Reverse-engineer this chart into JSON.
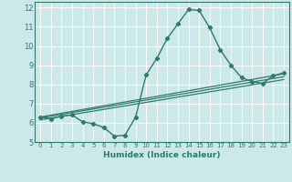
{
  "title": "",
  "xlabel": "Humidex (Indice chaleur)",
  "ylabel": "",
  "xlim": [
    -0.5,
    23.5
  ],
  "ylim": [
    5,
    12.3
  ],
  "yticks": [
    5,
    6,
    7,
    8,
    9,
    10,
    11,
    12
  ],
  "xticks": [
    0,
    1,
    2,
    3,
    4,
    5,
    6,
    7,
    8,
    9,
    10,
    11,
    12,
    13,
    14,
    15,
    16,
    17,
    18,
    19,
    20,
    21,
    22,
    23
  ],
  "bg_color": "#cce8e8",
  "grid_color": "#ffffff",
  "line_color": "#2e7b6e",
  "series1_x": [
    0,
    1,
    2,
    3,
    4,
    5,
    6,
    7,
    8,
    9,
    10,
    11,
    12,
    13,
    14,
    15,
    16,
    17,
    18,
    19,
    20,
    21,
    22,
    23
  ],
  "series1_y": [
    6.3,
    6.2,
    6.35,
    6.4,
    6.05,
    5.95,
    5.75,
    5.3,
    5.35,
    6.3,
    8.5,
    9.35,
    10.4,
    11.15,
    11.9,
    11.85,
    10.95,
    9.8,
    9.0,
    8.35,
    8.15,
    8.05,
    8.45,
    8.6
  ],
  "trend1_x": [
    0,
    23
  ],
  "trend1_y": [
    6.25,
    8.4
  ],
  "trend2_x": [
    0,
    23
  ],
  "trend2_y": [
    6.15,
    8.25
  ],
  "trend3_x": [
    0,
    23
  ],
  "trend3_y": [
    6.3,
    8.55
  ]
}
